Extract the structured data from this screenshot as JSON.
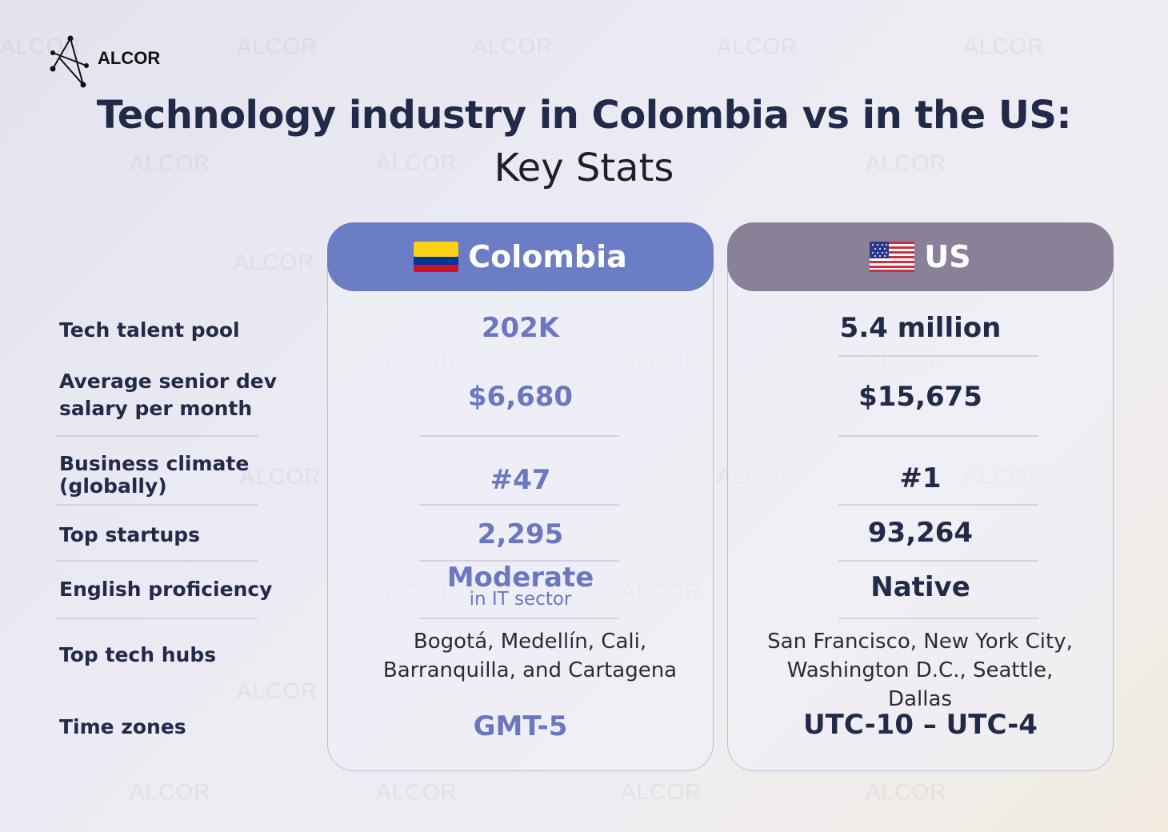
{
  "brand": {
    "name": "ALCOR",
    "watermark": "ALCOR"
  },
  "title": "Technology industry in Colombia vs in the US:",
  "subtitle": "Key Stats",
  "columns": {
    "colombia": {
      "name": "Colombia",
      "header_color": "#6b7dc4",
      "flag_icon": "colombia-flag-icon"
    },
    "us": {
      "name": "US",
      "header_color": "#8a8199",
      "flag_icon": "us-flag-icon"
    }
  },
  "rows": [
    {
      "label": "Tech talent pool",
      "colombia": "202K",
      "us": "5.4 million"
    },
    {
      "label": "Average senior dev salary per month",
      "colombia": "$6,680",
      "us": "$15,675"
    },
    {
      "label": "Business climate (globally)",
      "colombia": "#47",
      "us": "#1"
    },
    {
      "label": "Top startups",
      "colombia": "2,295",
      "us": "93,264"
    },
    {
      "label": "English proficiency",
      "colombia": "Moderate",
      "colombia_sub": "in IT sector",
      "us": "Native"
    },
    {
      "label": "Top tech hubs",
      "colombia": "Bogotá, Medellín, Cali, Barranquilla, and Cartagena",
      "us": "San Francisco, New York City, Washington D.C., Seattle, Dallas"
    },
    {
      "label": "Time zones",
      "colombia": "GMT-5",
      "us": "UTC-10 – UTC-4"
    }
  ]
}
